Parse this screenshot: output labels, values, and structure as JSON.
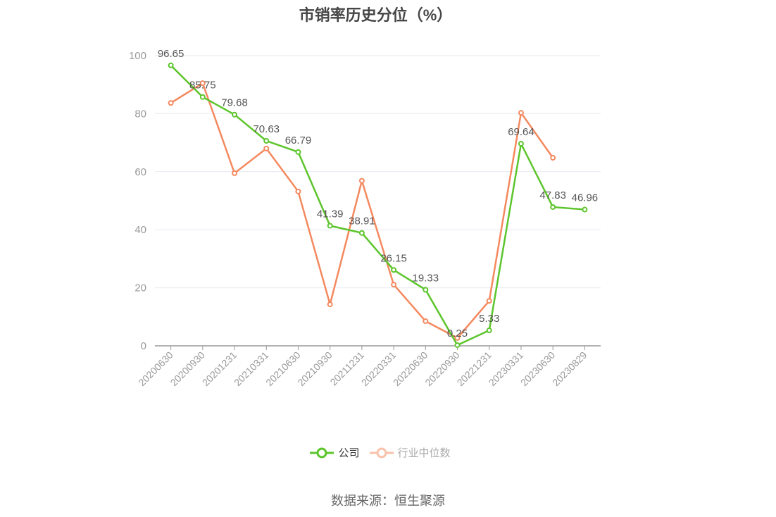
{
  "title": "市销率历史分位（%）",
  "source": "数据来源：恒生聚源",
  "legend": [
    {
      "label": "公司",
      "color": "#5cc52c",
      "active": true
    },
    {
      "label": "行业中位数",
      "color": "#f4895f",
      "active": false
    }
  ],
  "chart_data": {
    "type": "line",
    "title": "市销率历史分位（%）",
    "xlabel": "",
    "ylabel": "",
    "ylim": [
      0,
      100
    ],
    "yticks": [
      0,
      20,
      40,
      60,
      80,
      100
    ],
    "grid": true,
    "legend_position": "bottom",
    "categories": [
      "20200630",
      "20200930",
      "20201231",
      "20210331",
      "20210630",
      "20210930",
      "20211231",
      "20220331",
      "20220630",
      "20220930",
      "20221231",
      "20230331",
      "20230630",
      "20230829"
    ],
    "series": [
      {
        "name": "公司",
        "color": "#5cc52c",
        "show_labels": true,
        "values": [
          96.65,
          85.75,
          79.68,
          70.63,
          66.79,
          41.39,
          38.91,
          26.15,
          19.33,
          0.25,
          5.33,
          69.64,
          47.83,
          46.96
        ]
      },
      {
        "name": "行业中位数",
        "color": "#f4895f",
        "show_labels": false,
        "values": [
          83.7,
          90.5,
          59.5,
          68.0,
          53.2,
          14.3,
          56.9,
          21.1,
          8.5,
          2.7,
          15.5,
          80.3,
          64.8,
          null
        ]
      }
    ]
  }
}
